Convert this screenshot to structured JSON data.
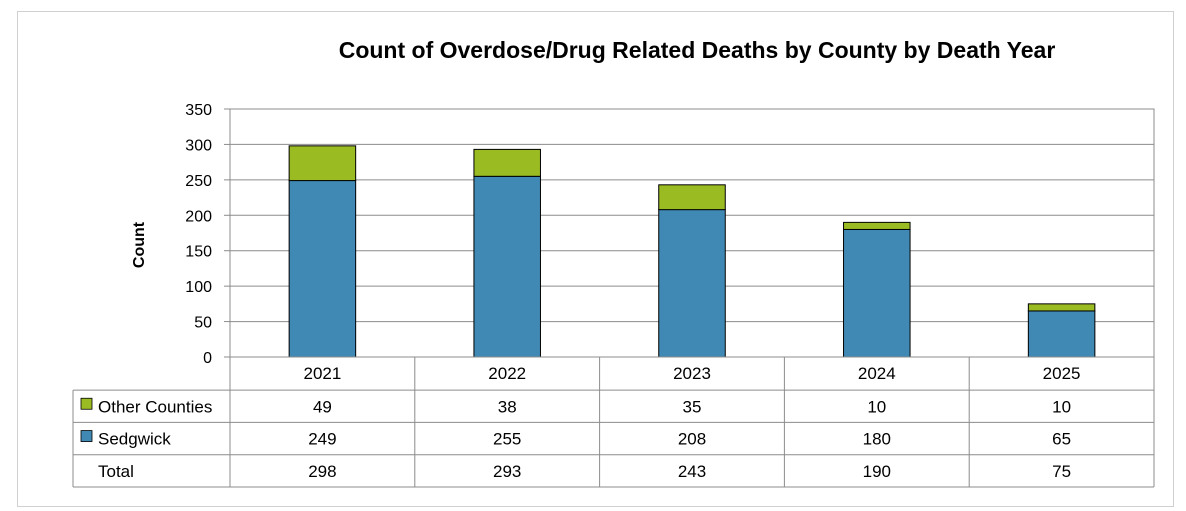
{
  "chart_data": {
    "type": "bar",
    "stacked": true,
    "title": "Count of Overdose/Drug Related Deaths by County by Death Year",
    "ylabel": "Count",
    "xlabel": "",
    "categories": [
      "2021",
      "2022",
      "2023",
      "2024",
      "2025"
    ],
    "ylim": [
      0,
      350
    ],
    "yticks": [
      "0",
      "50",
      "100",
      "150",
      "200",
      "250",
      "300",
      "350"
    ],
    "grid": true,
    "series": [
      {
        "name": "Sedgwick",
        "color": "#4189b5",
        "values": [
          249,
          255,
          208,
          180,
          65
        ]
      },
      {
        "name": "Other Counties",
        "color": "#9bbb22",
        "values": [
          49,
          38,
          35,
          10,
          10
        ]
      }
    ],
    "table": {
      "rows": [
        {
          "label": "Other Counties",
          "series": "Other Counties",
          "values": [
            "49",
            "38",
            "35",
            "10",
            "10"
          ]
        },
        {
          "label": "Sedgwick",
          "series": "Sedgwick",
          "values": [
            "249",
            "255",
            "208",
            "180",
            "65"
          ]
        },
        {
          "label": "Total",
          "series": "",
          "values": [
            "298",
            "293",
            "243",
            "190",
            "75"
          ]
        }
      ]
    }
  }
}
